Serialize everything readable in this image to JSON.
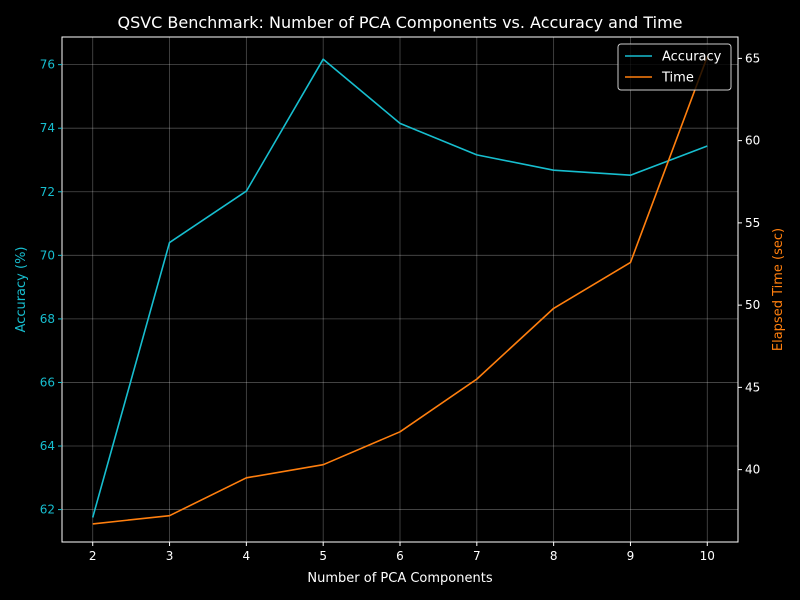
{
  "chart_data": {
    "type": "line",
    "title": "QSVC Benchmark: Number of PCA Components vs. Accuracy and Time",
    "xlabel": "Number of PCA Components",
    "ylabel_left": "Accuracy (%)",
    "ylabel_right": "Elapsed Time (sec)",
    "x": [
      2,
      3,
      4,
      5,
      6,
      7,
      8,
      9,
      10
    ],
    "xlim": [
      1.6,
      10.4
    ],
    "ylim_left": [
      60.98,
      76.87
    ],
    "ylim_right": [
      35.6,
      66.3
    ],
    "xticks": [
      2,
      3,
      4,
      5,
      6,
      7,
      8,
      9,
      10
    ],
    "yticks_left": [
      62,
      64,
      66,
      68,
      70,
      72,
      74,
      76
    ],
    "yticks_right": [
      40,
      45,
      50,
      55,
      60,
      65
    ],
    "grid": true,
    "legend": "top-right",
    "series": [
      {
        "name": "Accuracy",
        "axis": "left",
        "color": "#17becf",
        "values": [
          61.75,
          70.4,
          72.02,
          76.17,
          74.15,
          73.16,
          72.68,
          72.52,
          73.44
        ]
      },
      {
        "name": "Time",
        "axis": "right",
        "color": "#ff7f0e",
        "values": [
          36.7,
          37.2,
          39.5,
          40.3,
          42.3,
          45.5,
          49.8,
          52.6,
          65.1
        ]
      }
    ]
  }
}
